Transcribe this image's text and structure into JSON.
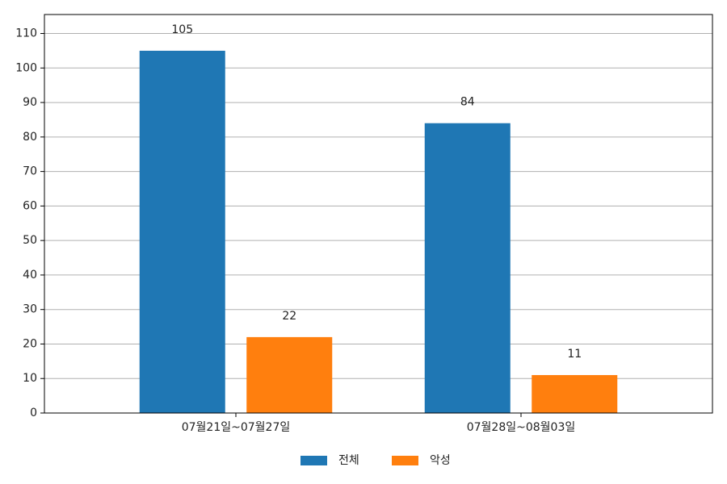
{
  "chart_data": {
    "type": "bar",
    "categories": [
      "07월21일~07월27일",
      "07월28일~08월03일"
    ],
    "series": [
      {
        "name": "전체",
        "color": "#1f77b4",
        "values": [
          105,
          84
        ]
      },
      {
        "name": "악성",
        "color": "#ff7f0e",
        "values": [
          22,
          11
        ]
      }
    ],
    "ylim": [
      0,
      115.5
    ],
    "yticks": [
      0,
      10,
      20,
      30,
      40,
      50,
      60,
      70,
      80,
      90,
      100,
      110
    ],
    "grid": true,
    "legend": "bottom"
  }
}
